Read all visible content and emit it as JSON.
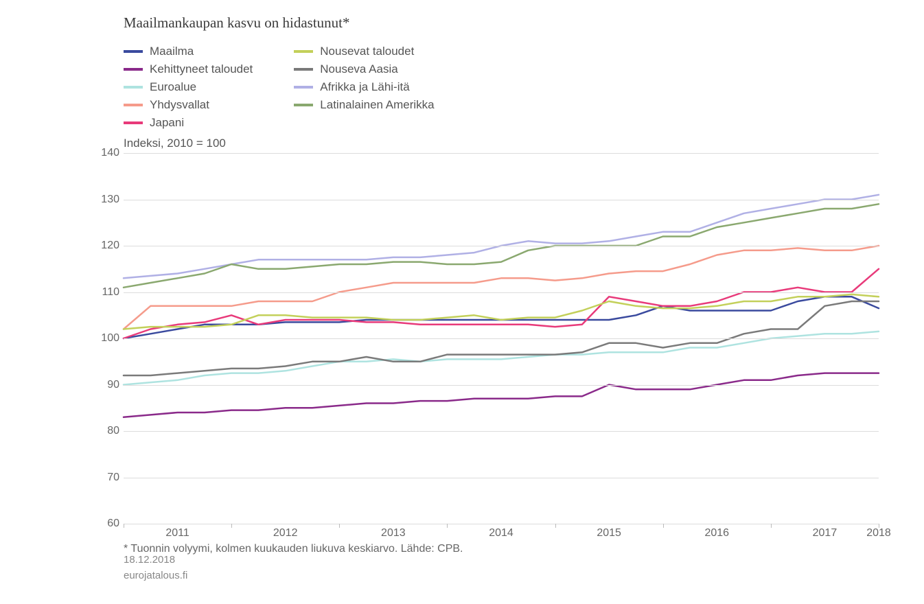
{
  "chart": {
    "type": "line",
    "title": "Maailmankaupan kasvu on hidastunut*",
    "subtitle": "Indeksi, 2010 = 100",
    "series": [
      {
        "key": "world",
        "label": "Maailma",
        "color": "#3a4a9e",
        "values": [
          100,
          101,
          102,
          103,
          103,
          103,
          103.5,
          103.5,
          103.5,
          104,
          104,
          104,
          104,
          104,
          104,
          104,
          104,
          104,
          104,
          105,
          107,
          106,
          106,
          106,
          106,
          108,
          109,
          109,
          106.5
        ]
      },
      {
        "key": "adv",
        "label": "Kehittyneet taloudet",
        "color": "#8a2a8a",
        "values": [
          83,
          83.5,
          84,
          84,
          84.5,
          84.5,
          85,
          85,
          85.5,
          86,
          86,
          86.5,
          86.5,
          87,
          87,
          87,
          87.5,
          87.5,
          90,
          89,
          89,
          89,
          90,
          91,
          91,
          92,
          92.5,
          92.5,
          92.5
        ]
      },
      {
        "key": "euro",
        "label": "Euroalue",
        "color": "#aee3e0",
        "values": [
          90,
          90.5,
          91,
          92,
          92.5,
          92.5,
          93,
          94,
          95,
          95,
          95.5,
          95,
          95.5,
          95.5,
          95.5,
          96,
          96.5,
          96.5,
          97,
          97,
          97,
          98,
          98,
          99,
          100,
          100.5,
          101,
          101,
          101.5
        ]
      },
      {
        "key": "usa",
        "label": "Yhdysvallat",
        "color": "#f59b8b",
        "values": [
          102,
          107,
          107,
          107,
          107,
          108,
          108,
          108,
          110,
          111,
          112,
          112,
          112,
          112,
          113,
          113,
          112.5,
          113,
          114,
          114.5,
          114.5,
          116,
          118,
          119,
          119,
          119.5,
          119,
          119,
          120
        ]
      },
      {
        "key": "japan",
        "label": "Japani",
        "color": "#e83a7a",
        "values": [
          100,
          102,
          103,
          103.5,
          105,
          103,
          104,
          104,
          104,
          103.5,
          103.5,
          103,
          103,
          103,
          103,
          103,
          102.5,
          103,
          109,
          108,
          107,
          107,
          108,
          110,
          110,
          111,
          110,
          110,
          115
        ]
      },
      {
        "key": "emerging",
        "label": "Nousevat taloudet",
        "color": "#c3d05a",
        "values": [
          102,
          102.5,
          102.5,
          102.5,
          103,
          105,
          105,
          104.5,
          104.5,
          104.5,
          104,
          104,
          104.5,
          105,
          104,
          104.5,
          104.5,
          106,
          108,
          107,
          106.5,
          106.5,
          107,
          108,
          108,
          109,
          109,
          109.5,
          109
        ]
      },
      {
        "key": "asia",
        "label": "Nouseva Aasia",
        "color": "#7a7a7a",
        "values": [
          92,
          92,
          92.5,
          93,
          93.5,
          93.5,
          94,
          95,
          95,
          96,
          95,
          95,
          96.5,
          96.5,
          96.5,
          96.5,
          96.5,
          97,
          99,
          99,
          98,
          99,
          99,
          101,
          102,
          102,
          107,
          108,
          108
        ]
      },
      {
        "key": "africa_me",
        "label": "Afrikka ja Lähi-itä",
        "color": "#b0b0e5",
        "values": [
          113,
          113.5,
          114,
          115,
          116,
          117,
          117,
          117,
          117,
          117,
          117.5,
          117.5,
          118,
          118.5,
          120,
          121,
          120.5,
          120.5,
          121,
          122,
          123,
          123,
          125,
          127,
          128,
          129,
          130,
          130,
          131
        ]
      },
      {
        "key": "latam",
        "label": "Latinalainen Amerikka",
        "color": "#8aa86f",
        "values": [
          111,
          112,
          113,
          114,
          116,
          115,
          115,
          115.5,
          116,
          116,
          116.5,
          116.5,
          116,
          116,
          116.5,
          119,
          120,
          120,
          120,
          120,
          122,
          122,
          124,
          125,
          126,
          127,
          128,
          128,
          129
        ]
      }
    ],
    "x": {
      "start_year": 2011,
      "end_year": 2018,
      "quarters": 29
    },
    "y": {
      "min": 60,
      "max": 140,
      "ticks": [
        60,
        70,
        80,
        90,
        100,
        110,
        120,
        130,
        140
      ]
    },
    "x_labels": [
      "2011",
      "2012",
      "2013",
      "2014",
      "2015",
      "2016",
      "2017",
      "2018"
    ],
    "grid_color": "#dcdcdc",
    "background_color": "#ffffff",
    "line_width": 2.5,
    "source": "* Tuonnin volyymi, kolmen kuukauden liukuva keskiarvo. Lähde: CPB.",
    "footer_date": "18.12.2018",
    "footer_site": "eurojatalous.fi"
  }
}
